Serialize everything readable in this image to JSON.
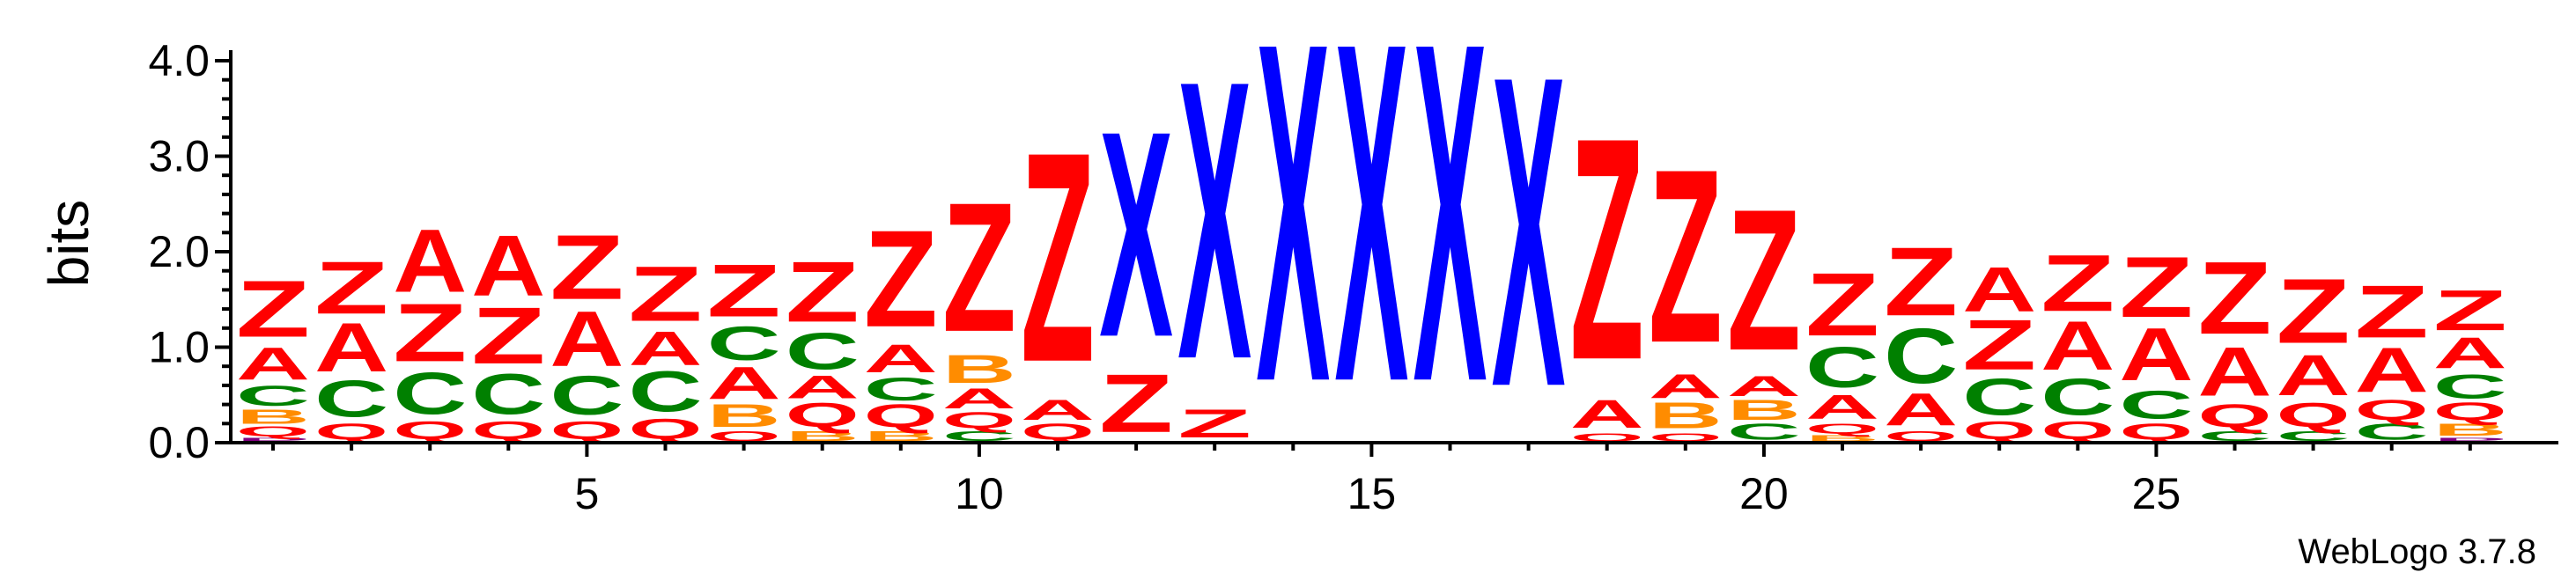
{
  "chart_data": {
    "type": "sequence-logo",
    "ylabel": "bits",
    "ylim": [
      0,
      4.0
    ],
    "y_ticks": [
      "0.0",
      "1.0",
      "2.0",
      "3.0",
      "4.0"
    ],
    "x_range": [
      1,
      29
    ],
    "x_ticks": [
      "5",
      "10",
      "15",
      "20",
      "25"
    ],
    "credit": "WebLogo 3.7.8",
    "colors": {
      "Z": "#ff0000",
      "A": "#ff0000",
      "X": "#0000ff",
      "C": "#008000",
      "B": "#ff8c00",
      "Q": "#ff0000",
      "P": "#800080"
    },
    "positions": [
      {
        "pos": 1,
        "stack": [
          [
            "P",
            0.05
          ],
          [
            "Q",
            0.12
          ],
          [
            "B",
            0.18
          ],
          [
            "C",
            0.25
          ],
          [
            "A",
            0.4
          ],
          [
            "Z",
            0.7
          ]
        ]
      },
      {
        "pos": 2,
        "stack": [
          [
            "Q",
            0.2
          ],
          [
            "C",
            0.45
          ],
          [
            "A",
            0.6
          ],
          [
            "Z",
            0.65
          ]
        ]
      },
      {
        "pos": 3,
        "stack": [
          [
            "Q",
            0.22
          ],
          [
            "C",
            0.52
          ],
          [
            "Z",
            0.72
          ],
          [
            "A",
            0.78
          ]
        ]
      },
      {
        "pos": 4,
        "stack": [
          [
            "Q",
            0.22
          ],
          [
            "C",
            0.5
          ],
          [
            "Z",
            0.7
          ],
          [
            "A",
            0.75
          ]
        ]
      },
      {
        "pos": 5,
        "stack": [
          [
            "Q",
            0.22
          ],
          [
            "C",
            0.48
          ],
          [
            "A",
            0.68
          ],
          [
            "Z",
            0.8
          ]
        ]
      },
      {
        "pos": 6,
        "stack": [
          [
            "Q",
            0.25
          ],
          [
            "C",
            0.5
          ],
          [
            "A",
            0.42
          ],
          [
            "Z",
            0.68
          ]
        ]
      },
      {
        "pos": 7,
        "stack": [
          [
            "Q",
            0.12
          ],
          [
            "B",
            0.28
          ],
          [
            "A",
            0.4
          ],
          [
            "C",
            0.42
          ],
          [
            "Z",
            0.65
          ]
        ]
      },
      {
        "pos": 8,
        "stack": [
          [
            "B",
            0.12
          ],
          [
            "Q",
            0.3
          ],
          [
            "A",
            0.28
          ],
          [
            "C",
            0.45
          ],
          [
            "Z",
            0.75
          ]
        ]
      },
      {
        "pos": 9,
        "stack": [
          [
            "B",
            0.12
          ],
          [
            "Q",
            0.28
          ],
          [
            "C",
            0.28
          ],
          [
            "A",
            0.35
          ],
          [
            "Z",
            1.2
          ]
        ]
      },
      {
        "pos": 10,
        "stack": [
          [
            "C",
            0.12
          ],
          [
            "Q",
            0.2
          ],
          [
            "A",
            0.25
          ],
          [
            "B",
            0.35
          ],
          [
            "Z",
            1.6
          ]
        ]
      },
      {
        "pos": 11,
        "stack": [
          [
            "Q",
            0.2
          ],
          [
            "A",
            0.25
          ],
          [
            "Z",
            2.6
          ]
        ]
      },
      {
        "pos": 12,
        "stack": [
          [
            "Z",
            0.72
          ],
          [
            "X",
            2.55
          ]
        ]
      },
      {
        "pos": 13,
        "stack": [
          [
            "Z",
            0.35
          ],
          [
            "X",
            3.45
          ]
        ]
      },
      {
        "pos": 14,
        "stack": [
          [
            "X",
            4.2
          ]
        ]
      },
      {
        "pos": 15,
        "stack": [
          [
            "X",
            4.2
          ]
        ]
      },
      {
        "pos": 16,
        "stack": [
          [
            "X",
            4.2
          ]
        ]
      },
      {
        "pos": 17,
        "stack": [
          [
            "X",
            3.85
          ]
        ]
      },
      {
        "pos": 18,
        "stack": [
          [
            "Q",
            0.1
          ],
          [
            "A",
            0.35
          ],
          [
            "Z",
            2.75
          ]
        ]
      },
      {
        "pos": 19,
        "stack": [
          [
            "Q",
            0.1
          ],
          [
            "B",
            0.32
          ],
          [
            "A",
            0.3
          ],
          [
            "Z",
            2.15
          ]
        ]
      },
      {
        "pos": 20,
        "stack": [
          [
            "C",
            0.2
          ],
          [
            "B",
            0.25
          ],
          [
            "A",
            0.25
          ],
          [
            "Z",
            1.75
          ]
        ]
      },
      {
        "pos": 21,
        "stack": [
          [
            "B",
            0.08
          ],
          [
            "Q",
            0.12
          ],
          [
            "A",
            0.3
          ],
          [
            "C",
            0.5
          ],
          [
            "Z",
            0.78
          ]
        ]
      },
      {
        "pos": 22,
        "stack": [
          [
            "Q",
            0.12
          ],
          [
            "A",
            0.4
          ],
          [
            "C",
            0.68
          ],
          [
            "Z",
            0.85
          ]
        ]
      },
      {
        "pos": 23,
        "stack": [
          [
            "Q",
            0.22
          ],
          [
            "C",
            0.45
          ],
          [
            "Z",
            0.62
          ],
          [
            "A",
            0.55
          ]
        ]
      },
      {
        "pos": 24,
        "stack": [
          [
            "Q",
            0.22
          ],
          [
            "C",
            0.45
          ],
          [
            "A",
            0.6
          ],
          [
            "Z",
            0.7
          ]
        ]
      },
      {
        "pos": 25,
        "stack": [
          [
            "Q",
            0.2
          ],
          [
            "C",
            0.35
          ],
          [
            "A",
            0.65
          ],
          [
            "Z",
            0.75
          ]
        ]
      },
      {
        "pos": 26,
        "stack": [
          [
            "C",
            0.12
          ],
          [
            "Q",
            0.28
          ],
          [
            "A",
            0.6
          ],
          [
            "Z",
            0.9
          ]
        ]
      },
      {
        "pos": 27,
        "stack": [
          [
            "C",
            0.12
          ],
          [
            "Q",
            0.3
          ],
          [
            "A",
            0.5
          ],
          [
            "Z",
            0.8
          ]
        ]
      },
      {
        "pos": 28,
        "stack": [
          [
            "C",
            0.2
          ],
          [
            "Q",
            0.25
          ],
          [
            "A",
            0.55
          ],
          [
            "Z",
            0.65
          ]
        ]
      },
      {
        "pos": 29,
        "stack": [
          [
            "P",
            0.05
          ],
          [
            "B",
            0.15
          ],
          [
            "Q",
            0.22
          ],
          [
            "C",
            0.3
          ],
          [
            "A",
            0.38
          ],
          [
            "Z",
            0.5
          ]
        ]
      }
    ]
  }
}
